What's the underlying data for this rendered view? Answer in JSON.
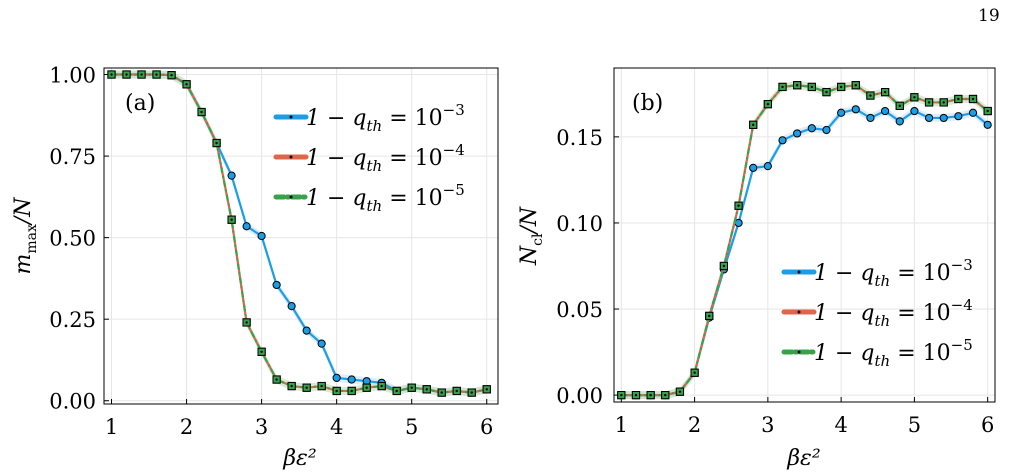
{
  "page_number": "19",
  "colors": {
    "series_1e3": "#1b9ee6",
    "series_1e4": "#e1654a",
    "series_1e5": "#3aa14b",
    "band_1e3": "#cfe6f8",
    "band_1e4": "#c9dfc4"
  },
  "chart_data": [
    {
      "type": "line",
      "panel_label": "(a)",
      "xlabel": "βε²",
      "ylabel": "m_max/N",
      "xlim": [
        0.9,
        6.15
      ],
      "ylim": [
        -0.01,
        1.02
      ],
      "xticks": [
        1,
        2,
        3,
        4,
        5,
        6
      ],
      "xtick_labels": [
        "1",
        "2",
        "3",
        "4",
        "5",
        "6"
      ],
      "yticks": [
        0,
        0.25,
        0.5,
        0.75,
        1.0
      ],
      "ytick_labels": [
        "0.00",
        "0.25",
        "0.50",
        "0.75",
        "1.00"
      ],
      "grid": true,
      "legend_position": "right",
      "x": [
        1.0,
        1.2,
        1.4,
        1.6,
        1.8,
        2.0,
        2.2,
        2.4,
        2.6,
        2.8,
        3.0,
        3.2,
        3.4,
        3.6,
        3.8,
        4.0,
        4.2,
        4.4,
        4.6,
        4.8,
        5.0,
        5.2,
        5.4,
        5.6,
        5.8,
        6.0
      ],
      "series": [
        {
          "name": "1 − q_th = 10^−3",
          "legend_main": "1 − q",
          "legend_sub": "th",
          "legend_rhs": " = 10",
          "legend_exp": "−3",
          "values": [
            1.0,
            1.0,
            1.0,
            1.0,
            0.998,
            0.97,
            0.885,
            0.79,
            0.69,
            0.535,
            0.505,
            0.355,
            0.29,
            0.215,
            0.175,
            0.07,
            0.065,
            0.06,
            0.055,
            0.03,
            0.04,
            0.035,
            0.025,
            0.03,
            0.025,
            0.035
          ]
        },
        {
          "name": "1 − q_th = 10^−4",
          "legend_main": "1 − q",
          "legend_sub": "th",
          "legend_rhs": " = 10",
          "legend_exp": "−4",
          "values": [
            1.0,
            1.0,
            1.0,
            1.0,
            0.998,
            0.97,
            0.885,
            0.79,
            0.555,
            0.24,
            0.15,
            0.065,
            0.045,
            0.04,
            0.045,
            0.03,
            0.03,
            0.04,
            0.045,
            0.03,
            0.04,
            0.035,
            0.025,
            0.03,
            0.025,
            0.035
          ]
        },
        {
          "name": "1 − q_th = 10^−5",
          "legend_main": "1 − q",
          "legend_sub": "th",
          "legend_rhs": " = 10",
          "legend_exp": "−5",
          "values": [
            1.0,
            1.0,
            1.0,
            1.0,
            0.998,
            0.97,
            0.885,
            0.79,
            0.555,
            0.24,
            0.15,
            0.065,
            0.045,
            0.04,
            0.045,
            0.03,
            0.03,
            0.04,
            0.045,
            0.03,
            0.04,
            0.035,
            0.025,
            0.03,
            0.025,
            0.035
          ]
        }
      ]
    },
    {
      "type": "line",
      "panel_label": "(b)",
      "xlabel": "βε²",
      "ylabel": "N_cl/N",
      "xlim": [
        0.9,
        6.1
      ],
      "ylim": [
        -0.004,
        0.19
      ],
      "xticks": [
        1,
        2,
        3,
        4,
        5,
        6
      ],
      "xtick_labels": [
        "1",
        "2",
        "3",
        "4",
        "5",
        "6"
      ],
      "yticks": [
        0,
        0.05,
        0.1,
        0.15
      ],
      "ytick_labels": [
        "0.00",
        "0.05",
        "0.10",
        "0.15"
      ],
      "grid": true,
      "legend_position": "bottom-right",
      "x": [
        1.0,
        1.2,
        1.4,
        1.6,
        1.8,
        2.0,
        2.2,
        2.4,
        2.6,
        2.8,
        3.0,
        3.2,
        3.4,
        3.6,
        3.8,
        4.0,
        4.2,
        4.4,
        4.6,
        4.8,
        5.0,
        5.2,
        5.4,
        5.6,
        5.8,
        6.0
      ],
      "series": [
        {
          "name": "1 − q_th = 10^−3",
          "legend_main": "1 − q",
          "legend_sub": "th",
          "legend_rhs": " = 10",
          "legend_exp": "−3",
          "values": [
            0.0,
            0.0,
            0.0,
            0.0,
            0.002,
            0.013,
            0.045,
            0.073,
            0.1,
            0.132,
            0.133,
            0.148,
            0.152,
            0.155,
            0.154,
            0.164,
            0.166,
            0.161,
            0.165,
            0.159,
            0.165,
            0.161,
            0.161,
            0.162,
            0.164,
            0.157
          ]
        },
        {
          "name": "1 − q_th = 10^−4",
          "legend_main": "1 − q",
          "legend_sub": "th",
          "legend_rhs": " = 10",
          "legend_exp": "−4",
          "values": [
            0.0,
            0.0,
            0.0,
            0.0,
            0.002,
            0.013,
            0.046,
            0.075,
            0.11,
            0.157,
            0.169,
            0.179,
            0.18,
            0.179,
            0.176,
            0.179,
            0.18,
            0.174,
            0.176,
            0.168,
            0.173,
            0.17,
            0.17,
            0.172,
            0.172,
            0.165
          ]
        },
        {
          "name": "1 − q_th = 10^−5",
          "legend_main": "1 − q",
          "legend_sub": "th",
          "legend_rhs": " = 10",
          "legend_exp": "−5",
          "values": [
            0.0,
            0.0,
            0.0,
            0.0,
            0.002,
            0.013,
            0.046,
            0.075,
            0.11,
            0.157,
            0.169,
            0.179,
            0.18,
            0.179,
            0.176,
            0.179,
            0.18,
            0.174,
            0.176,
            0.168,
            0.173,
            0.17,
            0.17,
            0.172,
            0.172,
            0.165
          ]
        }
      ]
    }
  ]
}
